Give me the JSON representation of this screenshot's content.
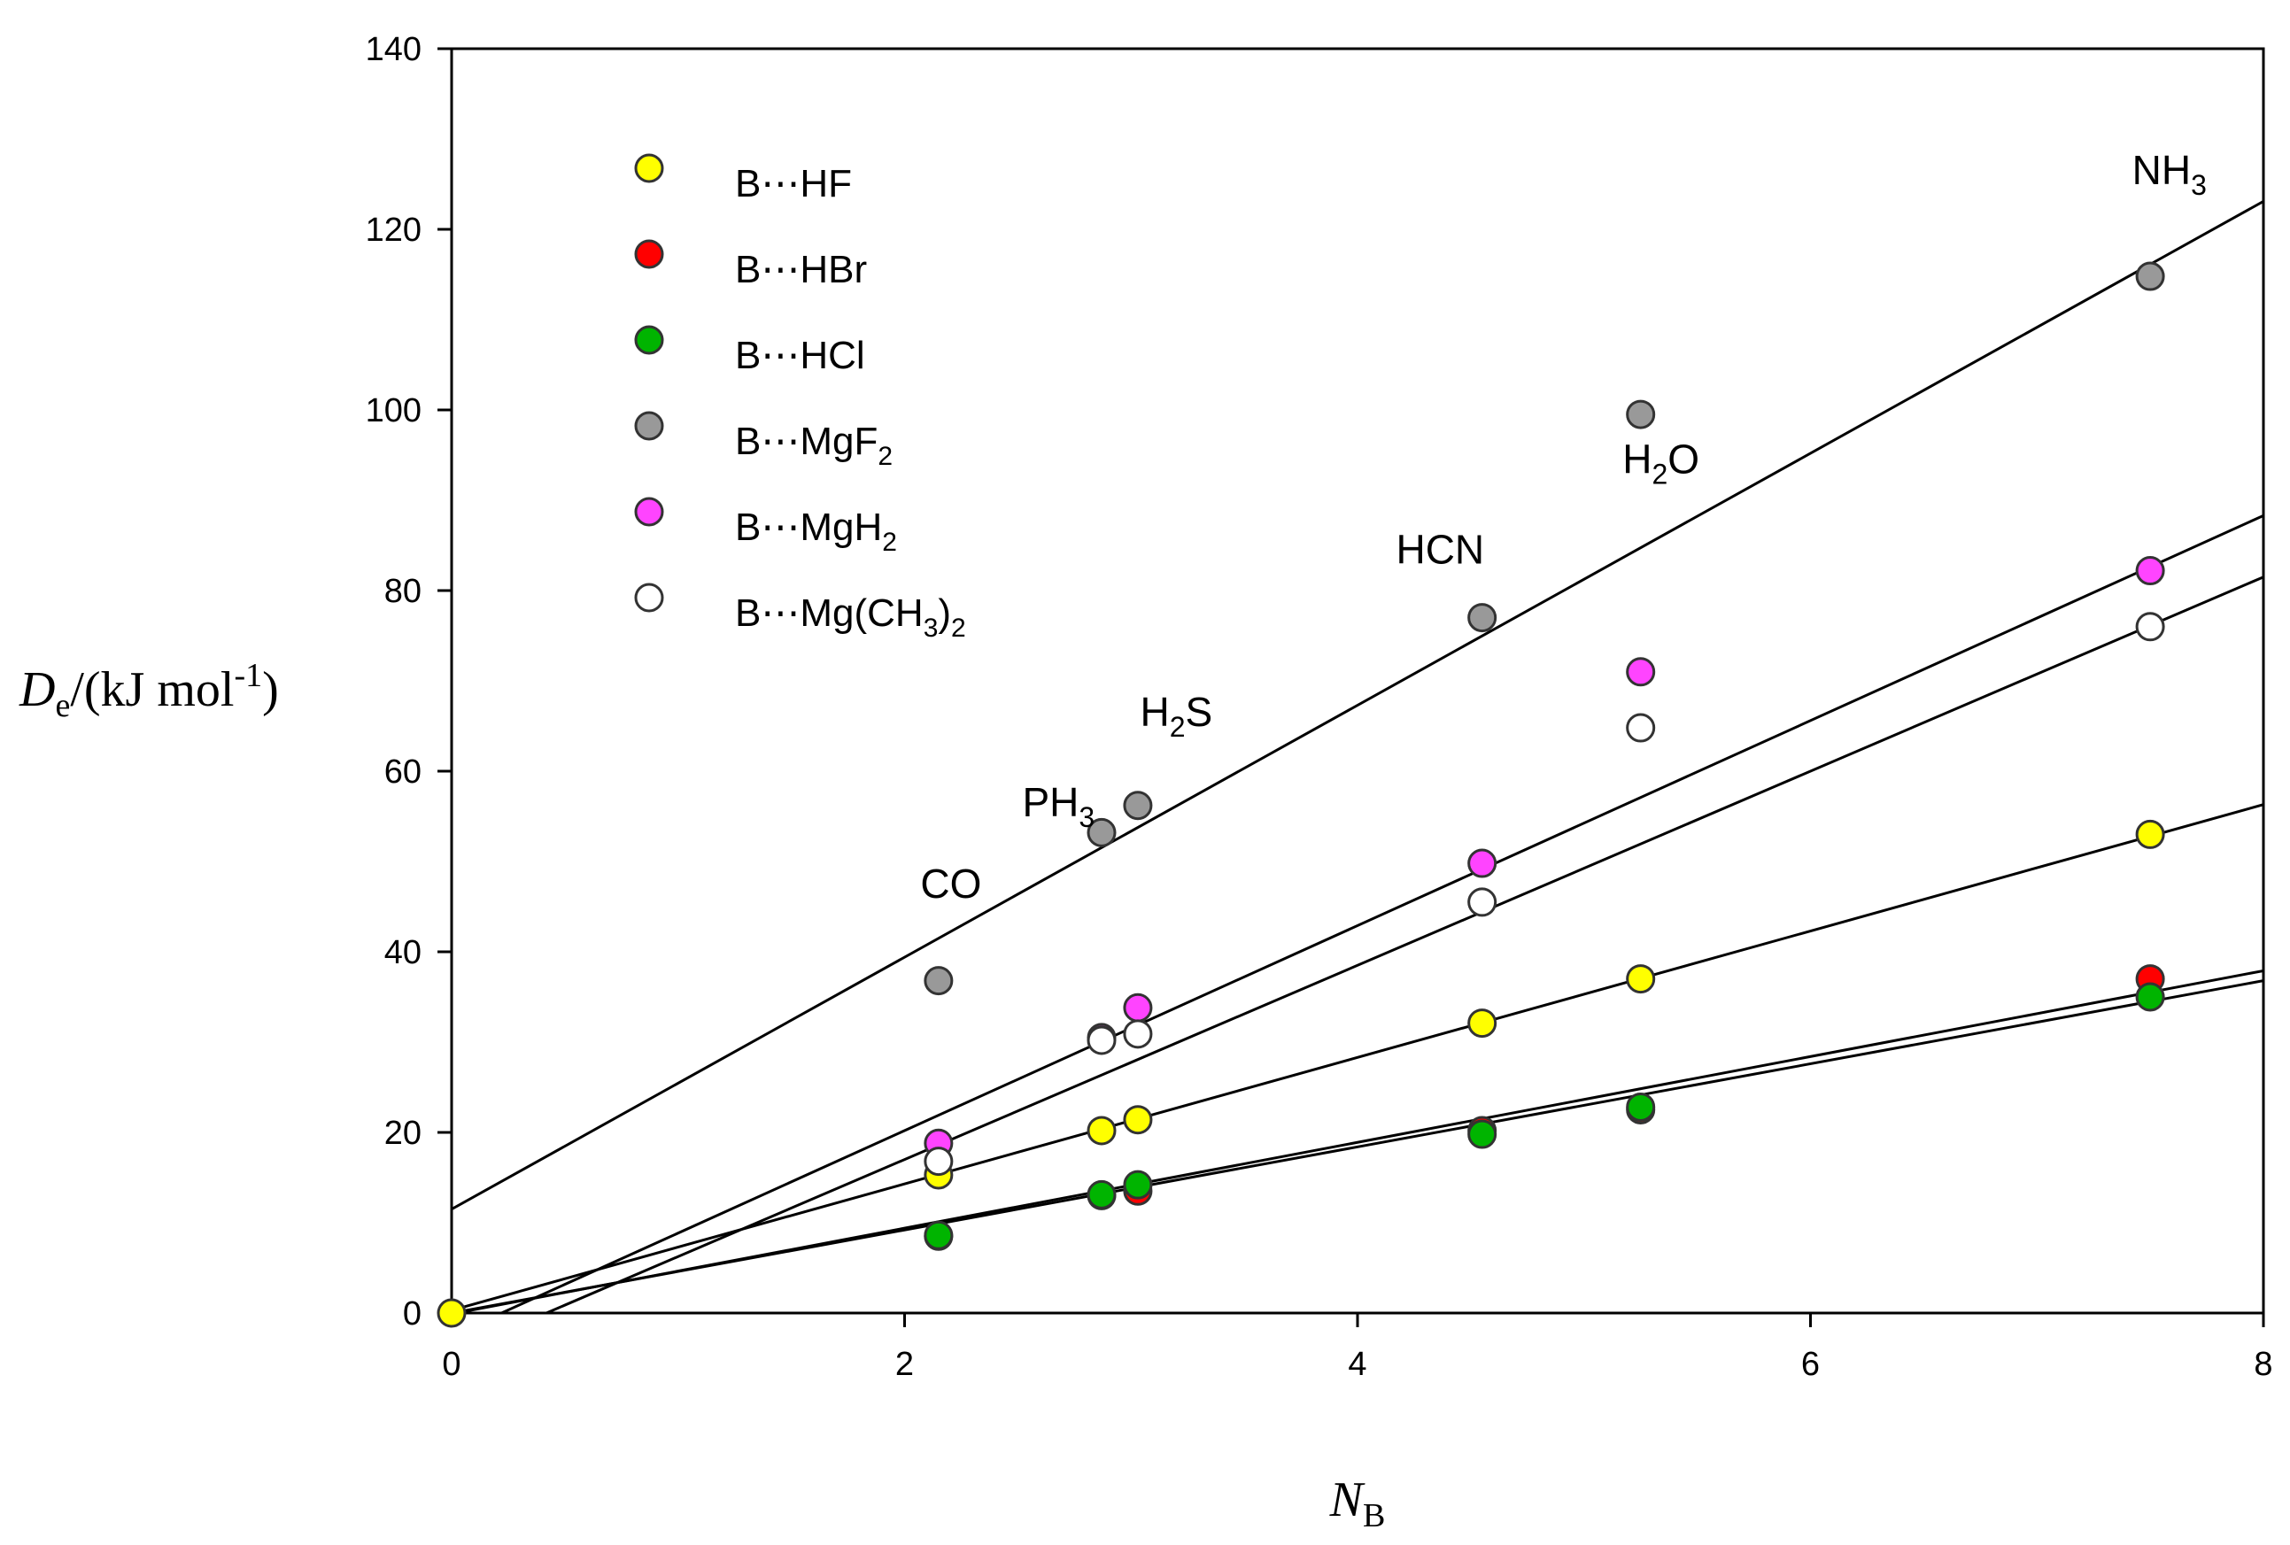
{
  "chart_data": {
    "type": "scatter",
    "title": "",
    "xlabel": {
      "symbol": "N",
      "sub": "B"
    },
    "ylabel": {
      "symbol": "D",
      "sub": "e",
      "unit": "/(kJ mol",
      "exp": "-1",
      "close": ")"
    },
    "xlim": [
      0,
      8
    ],
    "ylim": [
      0,
      140
    ],
    "xticks": [
      "0",
      "2",
      "4",
      "6",
      "8"
    ],
    "yticks": [
      "0",
      "20",
      "40",
      "60",
      "80",
      "100",
      "120",
      "140"
    ],
    "grid": false,
    "legend_position": "top-left",
    "series": [
      {
        "name": "B⋯HF",
        "label_main": "B⋯HF",
        "label_sub": "",
        "label_tail": "",
        "color": "#ffff00",
        "stroke": "#333333",
        "x": [
          0,
          2.15,
          2.87,
          3.03,
          4.55,
          5.25,
          7.5
        ],
        "y": [
          0,
          15.3,
          20.2,
          21.4,
          32.1,
          37.0,
          53.0
        ],
        "fit": {
          "slope": 7.0,
          "intercept": 0.3
        }
      },
      {
        "name": "B⋯HBr",
        "label_main": "B⋯HBr",
        "label_sub": "",
        "label_tail": "",
        "color": "#ff0000",
        "stroke": "#333333",
        "x": [
          2.15,
          2.87,
          3.03,
          4.55,
          5.25,
          7.5
        ],
        "y": [
          8.5,
          13.0,
          13.5,
          20.2,
          22.5,
          37.0
        ],
        "fit": {
          "slope": 4.75,
          "intercept": -0.1
        }
      },
      {
        "name": "B⋯HCl",
        "label_main": "B⋯HCl",
        "label_sub": "",
        "label_tail": "",
        "color": "#00b400",
        "stroke": "#333333",
        "x": [
          2.15,
          2.87,
          3.03,
          4.55,
          5.25,
          7.5
        ],
        "y": [
          8.6,
          13.1,
          14.2,
          19.8,
          22.8,
          35.0
        ],
        "fit": {
          "slope": 4.6,
          "intercept": 0.0
        }
      },
      {
        "name": "B⋯MgF2",
        "label_main": "B⋯MgF",
        "label_sub": "2",
        "label_tail": "",
        "color": "#999999",
        "stroke": "#333333",
        "x": [
          2.15,
          2.87,
          3.03,
          4.55,
          5.25,
          7.5
        ],
        "y": [
          36.8,
          53.2,
          56.2,
          77.0,
          99.5,
          114.8
        ],
        "fit": {
          "slope": 13.95,
          "intercept": 11.5
        }
      },
      {
        "name": "B⋯MgH2",
        "label_main": "B⋯MgH",
        "label_sub": "2",
        "label_tail": "",
        "color": "#ff44ff",
        "stroke": "#333333",
        "x": [
          2.15,
          2.87,
          3.03,
          4.55,
          5.25,
          7.5
        ],
        "y": [
          18.8,
          30.5,
          33.8,
          49.8,
          71.0,
          82.2
        ],
        "fit": {
          "slope": 11.35,
          "intercept": -2.5
        }
      },
      {
        "name": "B⋯Mg(CH3)2",
        "label_main": "B⋯Mg(CH",
        "label_sub": "3",
        "label_tail": ")₂",
        "color": "#ffffff",
        "stroke": "#333333",
        "x": [
          2.15,
          2.87,
          3.03,
          4.55,
          5.25,
          7.5
        ],
        "y": [
          16.8,
          30.2,
          30.9,
          45.5,
          64.8,
          76.0
        ],
        "fit": {
          "slope": 10.75,
          "intercept": -4.5
        }
      }
    ],
    "annotations": [
      {
        "main": "CO",
        "sub": "",
        "tail": "",
        "x": 2.07,
        "y": 46
      },
      {
        "main": "PH",
        "sub": "3",
        "tail": "",
        "x": 2.52,
        "y": 55
      },
      {
        "main": "H",
        "sub": "2",
        "tail": "S",
        "x": 3.04,
        "y": 65
      },
      {
        "main": "HCN",
        "sub": "",
        "tail": "",
        "x": 4.17,
        "y": 83
      },
      {
        "main": "H",
        "sub": "2",
        "tail": "O",
        "x": 5.17,
        "y": 93
      },
      {
        "main": "NH",
        "sub": "3",
        "tail": "",
        "x": 7.42,
        "y": 125
      }
    ]
  }
}
